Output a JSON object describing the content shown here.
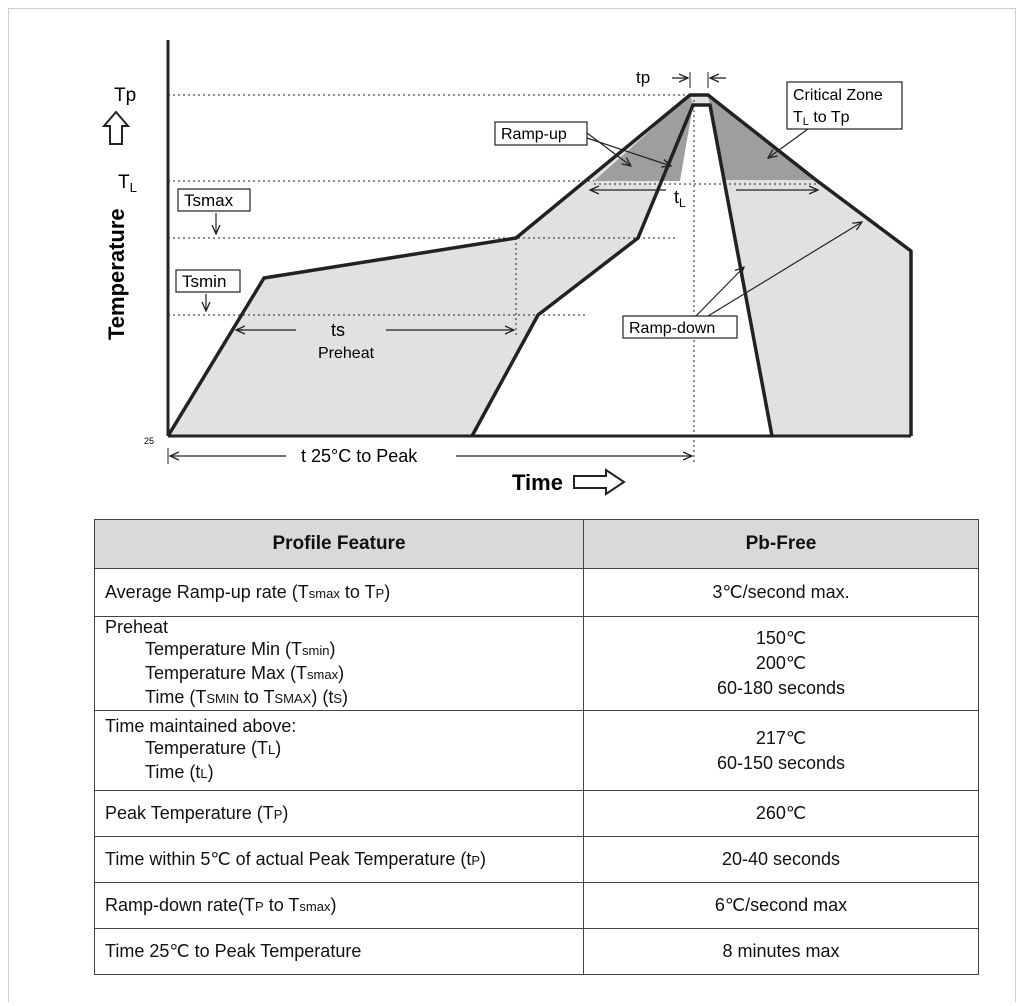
{
  "diagram": {
    "labels": {
      "tp_top": "tp",
      "Tp": "Tp",
      "TL_main": "T",
      "TL_sub": "L",
      "tsmax_box": "Tsmax",
      "tsmin_box": "Tsmin",
      "ramp_up_box": "Ramp-up",
      "ramp_down_box": "Ramp-down",
      "critical_zone_line1": "Critical Zone",
      "critical_zone_line2_main": "T",
      "critical_zone_line2_sub": "L",
      "critical_zone_line2_rest": " to Tp",
      "tL_main": "t",
      "tL_sub": "L",
      "ts": "ts",
      "preheat": "Preheat",
      "t25": "t  25°C to Peak",
      "y25": "25",
      "ylabel": "Temperature",
      "xlabel": "Time"
    },
    "colors": {
      "fill": "#e1e1e1",
      "dark_fill": "#9e9e9e",
      "line": "#222222"
    }
  },
  "table": {
    "headers": [
      "Profile Feature",
      "Pb-Free"
    ],
    "rows": [
      {
        "feature": [
          {
            "t": "Average Ramp-up rate (T"
          },
          {
            "s": "smax"
          },
          {
            "t": " to T"
          },
          {
            "s": "P"
          },
          {
            "t": ")"
          }
        ],
        "values": [
          "3℃/second max."
        ]
      },
      {
        "feature_title": "Preheat",
        "sub_items": [
          [
            {
              "t": "Temperature Min (T"
            },
            {
              "s": "smin"
            },
            {
              "t": ")"
            }
          ],
          [
            {
              "t": "Temperature Max (T"
            },
            {
              "s": "smax"
            },
            {
              "t": ")"
            }
          ],
          [
            {
              "t": "Time (T"
            },
            {
              "s": "SMIN"
            },
            {
              "t": " to T"
            },
            {
              "s": "SMAX"
            },
            {
              "t": ") (t"
            },
            {
              "s": "S"
            },
            {
              "t": ")"
            }
          ]
        ],
        "values": [
          "150℃",
          "200℃",
          "60-180 seconds"
        ]
      },
      {
        "feature_title": "Time maintained above:",
        "sub_items": [
          [
            {
              "t": "Temperature (T"
            },
            {
              "s": "L"
            },
            {
              "t": ")"
            }
          ],
          [
            {
              "t": "Time (t"
            },
            {
              "s": "L"
            },
            {
              "t": ")"
            }
          ]
        ],
        "values": [
          "217℃",
          "60-150 seconds"
        ]
      },
      {
        "feature": [
          {
            "t": "Peak Temperature (T"
          },
          {
            "s": "P"
          },
          {
            "t": ")"
          }
        ],
        "values": [
          "260℃"
        ]
      },
      {
        "feature": [
          {
            "t": "Time within 5℃  of actual Peak Temperature (t"
          },
          {
            "s": "P"
          },
          {
            "t": ")"
          }
        ],
        "values": [
          "20-40 seconds"
        ]
      },
      {
        "feature": [
          {
            "t": "Ramp-down rate(T"
          },
          {
            "s": "P"
          },
          {
            "t": " to T"
          },
          {
            "s": "smax"
          },
          {
            "t": ")"
          }
        ],
        "values": [
          "6℃/second max"
        ]
      },
      {
        "feature": [
          {
            "t": "Time 25℃  to Peak Temperature"
          }
        ],
        "values": [
          "8 minutes max"
        ]
      }
    ]
  }
}
